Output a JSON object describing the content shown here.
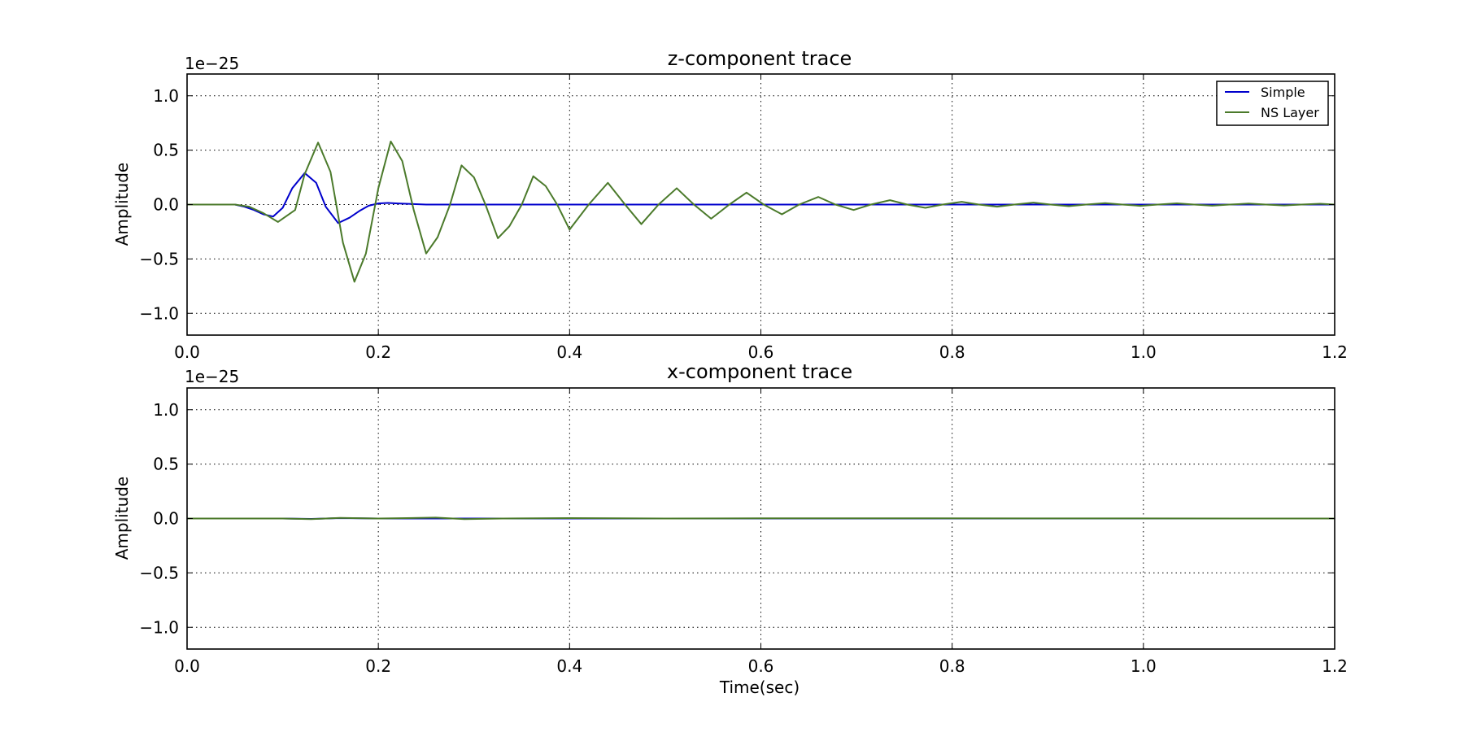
{
  "chart_data": [
    {
      "type": "line",
      "title": "z-component trace",
      "xlabel": "",
      "ylabel": "Amplitude",
      "offset_text": "1e−25",
      "xlim": [
        0.0,
        1.2
      ],
      "ylim": [
        -1.2,
        1.2
      ],
      "xticks": [
        0.0,
        0.2,
        0.4,
        0.6,
        0.8,
        1.0,
        1.2
      ],
      "xtick_labels": [
        "0.0",
        "0.2",
        "0.4",
        "0.6",
        "0.8",
        "1.0",
        "1.2"
      ],
      "yticks": [
        1.0,
        0.5,
        0.0,
        -0.5,
        -1.0
      ],
      "ytick_labels": [
        "1.0",
        "0.5",
        "0.0",
        "−0.5",
        "−1.0"
      ],
      "grid": true,
      "legend": "top-right",
      "series": [
        {
          "name": "Simple",
          "color": "#0000cc",
          "x": [
            0.0,
            0.05,
            0.06,
            0.07,
            0.08,
            0.09,
            0.1,
            0.11,
            0.123,
            0.135,
            0.145,
            0.158,
            0.17,
            0.18,
            0.19,
            0.2,
            0.21,
            0.22,
            0.25,
            0.3,
            0.4,
            0.6,
            0.8,
            1.0,
            1.2
          ],
          "y": [
            0.0,
            0.0,
            -0.02,
            -0.05,
            -0.09,
            -0.11,
            -0.03,
            0.15,
            0.29,
            0.2,
            -0.02,
            -0.17,
            -0.12,
            -0.06,
            -0.01,
            0.01,
            0.015,
            0.01,
            0.0,
            0.0,
            0.0,
            0.0,
            0.0,
            0.0,
            0.0
          ]
        },
        {
          "name": "NS Layer",
          "color": "#4b7a2b",
          "x": [
            0.0,
            0.05,
            0.065,
            0.08,
            0.095,
            0.113,
            0.123,
            0.137,
            0.15,
            0.163,
            0.175,
            0.187,
            0.2,
            0.213,
            0.225,
            0.237,
            0.25,
            0.262,
            0.275,
            0.287,
            0.3,
            0.312,
            0.325,
            0.337,
            0.35,
            0.362,
            0.375,
            0.387,
            0.4,
            0.42,
            0.44,
            0.458,
            0.475,
            0.493,
            0.512,
            0.53,
            0.548,
            0.567,
            0.585,
            0.603,
            0.622,
            0.64,
            0.66,
            0.678,
            0.697,
            0.715,
            0.735,
            0.753,
            0.772,
            0.79,
            0.81,
            0.828,
            0.847,
            0.865,
            0.885,
            0.903,
            0.922,
            0.94,
            0.96,
            0.978,
            0.997,
            1.015,
            1.035,
            1.053,
            1.072,
            1.09,
            1.11,
            1.128,
            1.147,
            1.165,
            1.185,
            1.2
          ],
          "y": [
            0.0,
            0.0,
            -0.02,
            -0.08,
            -0.16,
            -0.05,
            0.28,
            0.57,
            0.3,
            -0.35,
            -0.71,
            -0.45,
            0.15,
            0.58,
            0.4,
            -0.05,
            -0.45,
            -0.3,
            0.0,
            0.36,
            0.25,
            0.0,
            -0.31,
            -0.2,
            0.0,
            0.26,
            0.17,
            0.0,
            -0.23,
            0.0,
            0.2,
            0.0,
            -0.18,
            0.0,
            0.15,
            0.0,
            -0.13,
            0.0,
            0.11,
            0.0,
            -0.09,
            0.0,
            0.07,
            0.0,
            -0.05,
            0.0,
            0.04,
            0.0,
            -0.03,
            0.0,
            0.025,
            0.0,
            -0.02,
            0.0,
            0.018,
            0.0,
            -0.015,
            0.0,
            0.013,
            0.0,
            -0.012,
            0.0,
            0.011,
            0.0,
            -0.01,
            0.0,
            0.009,
            0.0,
            -0.008,
            0.0,
            0.007,
            0.0
          ]
        }
      ]
    },
    {
      "type": "line",
      "title": "x-component trace",
      "xlabel": "Time(sec)",
      "ylabel": "Amplitude",
      "offset_text": "1e−25",
      "xlim": [
        0.0,
        1.2
      ],
      "ylim": [
        -1.2,
        1.2
      ],
      "xticks": [
        0.0,
        0.2,
        0.4,
        0.6,
        0.8,
        1.0,
        1.2
      ],
      "xtick_labels": [
        "0.0",
        "0.2",
        "0.4",
        "0.6",
        "0.8",
        "1.0",
        "1.2"
      ],
      "yticks": [
        1.0,
        0.5,
        0.0,
        -0.5,
        -1.0
      ],
      "ytick_labels": [
        "1.0",
        "0.5",
        "0.0",
        "−0.5",
        "−1.0"
      ],
      "grid": true,
      "series": [
        {
          "name": "Simple",
          "color": "#0000cc",
          "x": [
            0.0,
            0.1,
            0.13,
            0.16,
            0.2,
            0.26,
            0.29,
            0.4,
            1.2
          ],
          "y": [
            0.0,
            0.0,
            -0.004,
            0.004,
            0.0,
            0.0,
            0.0,
            0.0,
            0.0
          ]
        },
        {
          "name": "NS Layer",
          "color": "#4b7a2b",
          "x": [
            0.0,
            0.1,
            0.13,
            0.16,
            0.2,
            0.26,
            0.29,
            0.33,
            0.4,
            0.5,
            0.6,
            1.2
          ],
          "y": [
            0.0,
            0.0,
            -0.006,
            0.006,
            0.0,
            0.008,
            -0.006,
            0.0,
            0.004,
            0.0,
            0.002,
            0.0
          ]
        }
      ]
    }
  ]
}
